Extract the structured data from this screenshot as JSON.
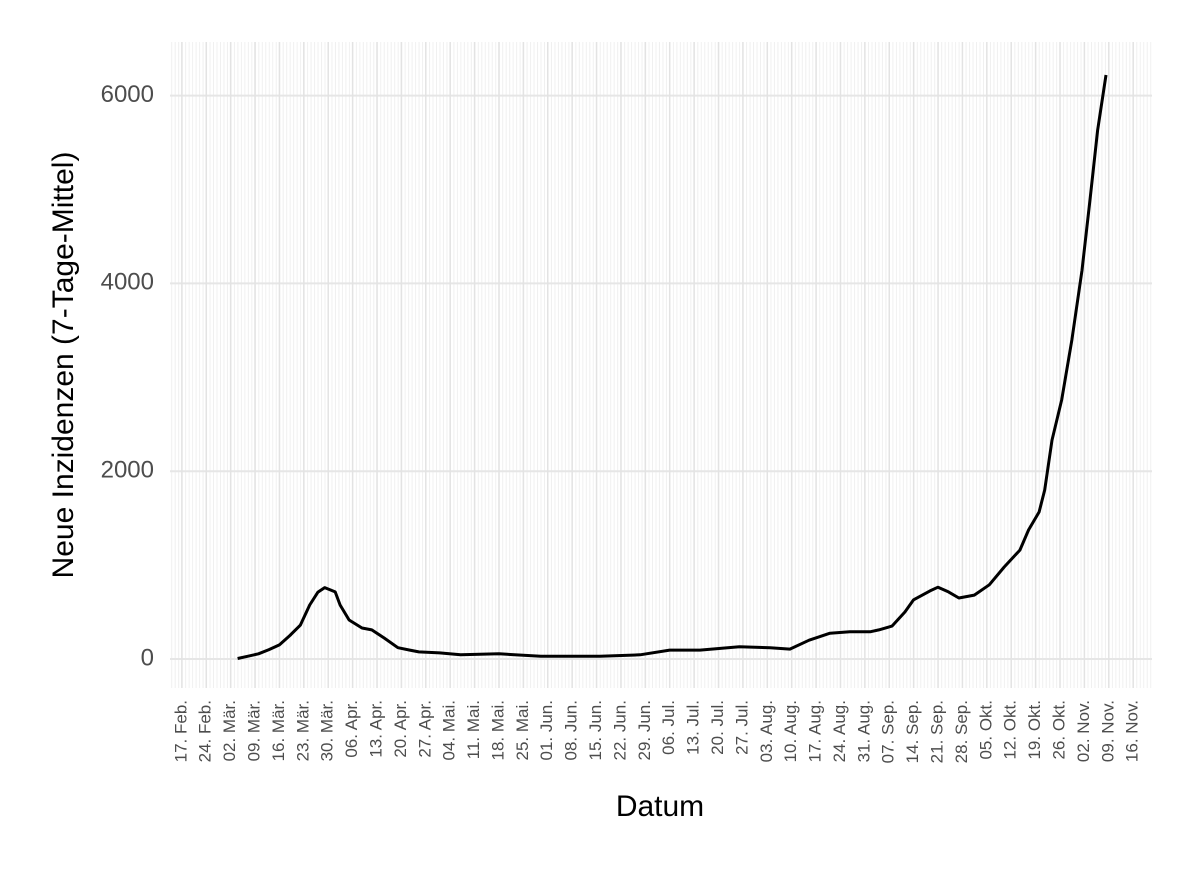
{
  "chart_data": {
    "type": "line",
    "x_label": "Datum",
    "y_label": "Neue Inzidenzen (7-Tage-Mittel)",
    "color": "#000000",
    "grid": true,
    "xlim": [
      44.6,
      326.4
    ],
    "ylim": [
      -309,
      6571
    ],
    "yticks": [
      0,
      2000,
      4000,
      6000
    ],
    "xticks": [
      {
        "value": 48,
        "label": "17. Feb."
      },
      {
        "value": 55,
        "label": "24. Feb."
      },
      {
        "value": 62,
        "label": "02. Mär."
      },
      {
        "value": 69,
        "label": "09. Mär."
      },
      {
        "value": 76,
        "label": "16. Mär."
      },
      {
        "value": 83,
        "label": "23. Mär."
      },
      {
        "value": 90,
        "label": "30. Mär."
      },
      {
        "value": 97,
        "label": "06. Apr."
      },
      {
        "value": 104,
        "label": "13. Apr."
      },
      {
        "value": 111,
        "label": "20. Apr."
      },
      {
        "value": 118,
        "label": "27. Apr."
      },
      {
        "value": 125,
        "label": "04. Mai."
      },
      {
        "value": 132,
        "label": "11. Mai."
      },
      {
        "value": 139,
        "label": "18. Mai."
      },
      {
        "value": 146,
        "label": "25. Mai."
      },
      {
        "value": 153,
        "label": "01. Jun."
      },
      {
        "value": 160,
        "label": "08. Jun."
      },
      {
        "value": 167,
        "label": "15. Jun."
      },
      {
        "value": 174,
        "label": "22. Jun."
      },
      {
        "value": 181,
        "label": "29. Jun."
      },
      {
        "value": 188,
        "label": "06. Jul."
      },
      {
        "value": 195,
        "label": "13. Jul."
      },
      {
        "value": 202,
        "label": "20. Jul."
      },
      {
        "value": 209,
        "label": "27. Jul."
      },
      {
        "value": 216,
        "label": "03. Aug."
      },
      {
        "value": 223,
        "label": "10. Aug."
      },
      {
        "value": 230,
        "label": "17. Aug."
      },
      {
        "value": 237,
        "label": "24. Aug."
      },
      {
        "value": 244,
        "label": "31. Aug."
      },
      {
        "value": 251,
        "label": "07. Sep."
      },
      {
        "value": 258,
        "label": "14. Sep."
      },
      {
        "value": 265,
        "label": "21. Sep."
      },
      {
        "value": 272,
        "label": "28. Sep."
      },
      {
        "value": 279,
        "label": "05. Okt."
      },
      {
        "value": 286,
        "label": "12. Okt."
      },
      {
        "value": 293,
        "label": "19. Okt."
      },
      {
        "value": 300,
        "label": "26. Okt."
      },
      {
        "value": 307,
        "label": "02. Nov."
      },
      {
        "value": 314,
        "label": "09. Nov."
      },
      {
        "value": 321,
        "label": "16. Nov."
      }
    ],
    "x": [
      64,
      67,
      70,
      73,
      76,
      79,
      82,
      84.7,
      87,
      89,
      92,
      93.4,
      96,
      99.7,
      102.5,
      106,
      110,
      113.4,
      116,
      122,
      128,
      139,
      151,
      168,
      179.5,
      188,
      196.7,
      208,
      216.8,
      222.5,
      228,
      234,
      239.7,
      245.5,
      248,
      251.8,
      255.5,
      258,
      262.7,
      265,
      268,
      271,
      275.4,
      279.7,
      284,
      288.5,
      291,
      294,
      295.6,
      297.7,
      300.5,
      303.4,
      306.3,
      308.6,
      310.8,
      313.2
    ],
    "values": [
      5,
      30,
      55,
      100,
      150,
      250,
      360,
      575,
      710,
      760,
      715,
      575,
      415,
      330,
      310,
      225,
      120,
      95,
      75,
      65,
      45,
      55,
      30,
      30,
      45,
      95,
      95,
      130,
      120,
      105,
      200,
      275,
      290,
      290,
      310,
      350,
      500,
      630,
      725,
      765,
      715,
      650,
      680,
      790,
      980,
      1160,
      1375,
      1565,
      1800,
      2330,
      2760,
      3400,
      4140,
      4890,
      5630,
      6220
    ]
  }
}
